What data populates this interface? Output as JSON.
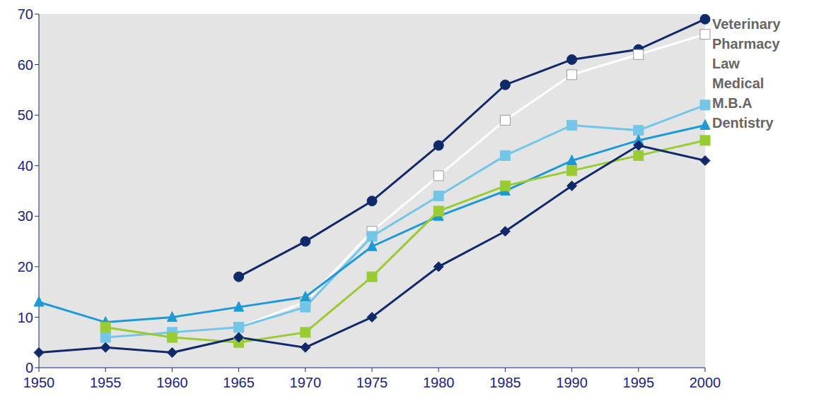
{
  "chart_data": {
    "type": "line",
    "x": [
      1950,
      1955,
      1960,
      1965,
      1970,
      1975,
      1980,
      1985,
      1990,
      1995,
      2000
    ],
    "series": [
      {
        "name": "Veterinary",
        "color": "#10296b",
        "marker": "circle",
        "values": [
          null,
          null,
          null,
          18,
          25,
          33,
          44,
          56,
          61,
          63,
          69
        ]
      },
      {
        "name": "Pharmacy",
        "color": "#ffffff",
        "marker": "square",
        "values": [
          null,
          null,
          null,
          8,
          13,
          27,
          38,
          49,
          58,
          62,
          66
        ]
      },
      {
        "name": "Law",
        "color": "#74c6e8",
        "marker": "square",
        "values": [
          null,
          6,
          7,
          8,
          12,
          26,
          34,
          42,
          48,
          47,
          52
        ]
      },
      {
        "name": "Medical",
        "color": "#1c9ad6",
        "marker": "triangle",
        "values": [
          13,
          9,
          10,
          12,
          14,
          24,
          30,
          35,
          41,
          45,
          48
        ]
      },
      {
        "name": "M.B.A",
        "color": "#99cc33",
        "marker": "square",
        "values": [
          null,
          8,
          6,
          5,
          7,
          18,
          31,
          36,
          39,
          42,
          45
        ]
      },
      {
        "name": "Dentistry",
        "color": "#10296b",
        "marker": "diamond",
        "values": [
          3,
          4,
          3,
          6,
          4,
          10,
          20,
          27,
          36,
          44,
          41
        ]
      }
    ],
    "ylim": [
      0,
      70
    ],
    "yticks": [
      0,
      10,
      20,
      30,
      40,
      50,
      60,
      70
    ],
    "grid": false,
    "legend": "right"
  }
}
